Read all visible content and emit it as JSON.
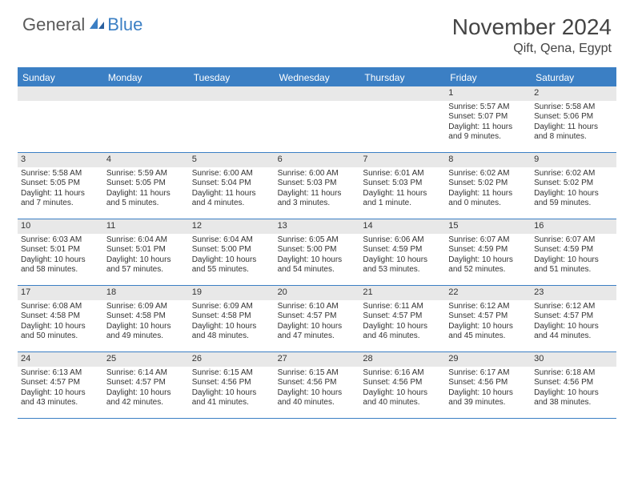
{
  "logo": {
    "general": "General",
    "blue": "Blue"
  },
  "title": "November 2024",
  "location": "Qift, Qena, Egypt",
  "dayNames": [
    "Sunday",
    "Monday",
    "Tuesday",
    "Wednesday",
    "Thursday",
    "Friday",
    "Saturday"
  ],
  "colors": {
    "accent": "#3b7fc4",
    "headerText": "#ffffff",
    "stripe": "#e8e8e8"
  },
  "weeks": [
    [
      null,
      null,
      null,
      null,
      null,
      {
        "n": "1",
        "sr": "Sunrise: 5:57 AM",
        "ss": "Sunset: 5:07 PM",
        "d1": "Daylight: 11 hours",
        "d2": "and 9 minutes."
      },
      {
        "n": "2",
        "sr": "Sunrise: 5:58 AM",
        "ss": "Sunset: 5:06 PM",
        "d1": "Daylight: 11 hours",
        "d2": "and 8 minutes."
      }
    ],
    [
      {
        "n": "3",
        "sr": "Sunrise: 5:58 AM",
        "ss": "Sunset: 5:05 PM",
        "d1": "Daylight: 11 hours",
        "d2": "and 7 minutes."
      },
      {
        "n": "4",
        "sr": "Sunrise: 5:59 AM",
        "ss": "Sunset: 5:05 PM",
        "d1": "Daylight: 11 hours",
        "d2": "and 5 minutes."
      },
      {
        "n": "5",
        "sr": "Sunrise: 6:00 AM",
        "ss": "Sunset: 5:04 PM",
        "d1": "Daylight: 11 hours",
        "d2": "and 4 minutes."
      },
      {
        "n": "6",
        "sr": "Sunrise: 6:00 AM",
        "ss": "Sunset: 5:03 PM",
        "d1": "Daylight: 11 hours",
        "d2": "and 3 minutes."
      },
      {
        "n": "7",
        "sr": "Sunrise: 6:01 AM",
        "ss": "Sunset: 5:03 PM",
        "d1": "Daylight: 11 hours",
        "d2": "and 1 minute."
      },
      {
        "n": "8",
        "sr": "Sunrise: 6:02 AM",
        "ss": "Sunset: 5:02 PM",
        "d1": "Daylight: 11 hours",
        "d2": "and 0 minutes."
      },
      {
        "n": "9",
        "sr": "Sunrise: 6:02 AM",
        "ss": "Sunset: 5:02 PM",
        "d1": "Daylight: 10 hours",
        "d2": "and 59 minutes."
      }
    ],
    [
      {
        "n": "10",
        "sr": "Sunrise: 6:03 AM",
        "ss": "Sunset: 5:01 PM",
        "d1": "Daylight: 10 hours",
        "d2": "and 58 minutes."
      },
      {
        "n": "11",
        "sr": "Sunrise: 6:04 AM",
        "ss": "Sunset: 5:01 PM",
        "d1": "Daylight: 10 hours",
        "d2": "and 57 minutes."
      },
      {
        "n": "12",
        "sr": "Sunrise: 6:04 AM",
        "ss": "Sunset: 5:00 PM",
        "d1": "Daylight: 10 hours",
        "d2": "and 55 minutes."
      },
      {
        "n": "13",
        "sr": "Sunrise: 6:05 AM",
        "ss": "Sunset: 5:00 PM",
        "d1": "Daylight: 10 hours",
        "d2": "and 54 minutes."
      },
      {
        "n": "14",
        "sr": "Sunrise: 6:06 AM",
        "ss": "Sunset: 4:59 PM",
        "d1": "Daylight: 10 hours",
        "d2": "and 53 minutes."
      },
      {
        "n": "15",
        "sr": "Sunrise: 6:07 AM",
        "ss": "Sunset: 4:59 PM",
        "d1": "Daylight: 10 hours",
        "d2": "and 52 minutes."
      },
      {
        "n": "16",
        "sr": "Sunrise: 6:07 AM",
        "ss": "Sunset: 4:59 PM",
        "d1": "Daylight: 10 hours",
        "d2": "and 51 minutes."
      }
    ],
    [
      {
        "n": "17",
        "sr": "Sunrise: 6:08 AM",
        "ss": "Sunset: 4:58 PM",
        "d1": "Daylight: 10 hours",
        "d2": "and 50 minutes."
      },
      {
        "n": "18",
        "sr": "Sunrise: 6:09 AM",
        "ss": "Sunset: 4:58 PM",
        "d1": "Daylight: 10 hours",
        "d2": "and 49 minutes."
      },
      {
        "n": "19",
        "sr": "Sunrise: 6:09 AM",
        "ss": "Sunset: 4:58 PM",
        "d1": "Daylight: 10 hours",
        "d2": "and 48 minutes."
      },
      {
        "n": "20",
        "sr": "Sunrise: 6:10 AM",
        "ss": "Sunset: 4:57 PM",
        "d1": "Daylight: 10 hours",
        "d2": "and 47 minutes."
      },
      {
        "n": "21",
        "sr": "Sunrise: 6:11 AM",
        "ss": "Sunset: 4:57 PM",
        "d1": "Daylight: 10 hours",
        "d2": "and 46 minutes."
      },
      {
        "n": "22",
        "sr": "Sunrise: 6:12 AM",
        "ss": "Sunset: 4:57 PM",
        "d1": "Daylight: 10 hours",
        "d2": "and 45 minutes."
      },
      {
        "n": "23",
        "sr": "Sunrise: 6:12 AM",
        "ss": "Sunset: 4:57 PM",
        "d1": "Daylight: 10 hours",
        "d2": "and 44 minutes."
      }
    ],
    [
      {
        "n": "24",
        "sr": "Sunrise: 6:13 AM",
        "ss": "Sunset: 4:57 PM",
        "d1": "Daylight: 10 hours",
        "d2": "and 43 minutes."
      },
      {
        "n": "25",
        "sr": "Sunrise: 6:14 AM",
        "ss": "Sunset: 4:57 PM",
        "d1": "Daylight: 10 hours",
        "d2": "and 42 minutes."
      },
      {
        "n": "26",
        "sr": "Sunrise: 6:15 AM",
        "ss": "Sunset: 4:56 PM",
        "d1": "Daylight: 10 hours",
        "d2": "and 41 minutes."
      },
      {
        "n": "27",
        "sr": "Sunrise: 6:15 AM",
        "ss": "Sunset: 4:56 PM",
        "d1": "Daylight: 10 hours",
        "d2": "and 40 minutes."
      },
      {
        "n": "28",
        "sr": "Sunrise: 6:16 AM",
        "ss": "Sunset: 4:56 PM",
        "d1": "Daylight: 10 hours",
        "d2": "and 40 minutes."
      },
      {
        "n": "29",
        "sr": "Sunrise: 6:17 AM",
        "ss": "Sunset: 4:56 PM",
        "d1": "Daylight: 10 hours",
        "d2": "and 39 minutes."
      },
      {
        "n": "30",
        "sr": "Sunrise: 6:18 AM",
        "ss": "Sunset: 4:56 PM",
        "d1": "Daylight: 10 hours",
        "d2": "and 38 minutes."
      }
    ]
  ]
}
